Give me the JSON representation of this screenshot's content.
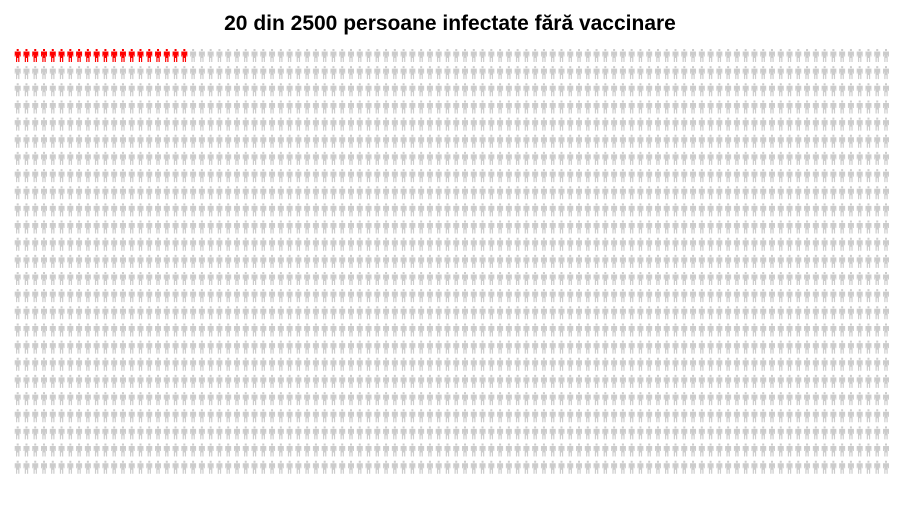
{
  "chart_data": {
    "type": "icon-array",
    "title": "20 din 2500 persoane infectate fără vaccinare",
    "total": 2500,
    "highlighted": 20,
    "columns": 100,
    "rows": 25,
    "icon": "person-icon",
    "colors": {
      "highlighted": "#ff0000",
      "other": "#cccccc"
    }
  }
}
